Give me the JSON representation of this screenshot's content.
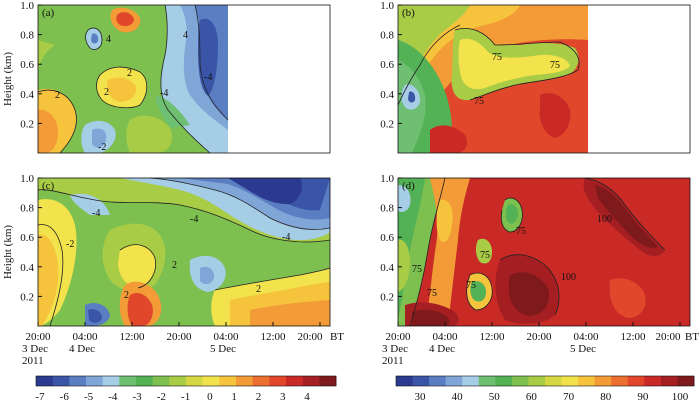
{
  "chart_data": [
    {
      "type": "heatmap",
      "panel_label": "(a)",
      "ylabel": "Height (km)",
      "yticks": [
        "0.2",
        "0.4",
        "0.6",
        "0.8",
        "1.0"
      ],
      "ylim": [
        0.02,
        1.0
      ],
      "data_extent": "20:00 3 Dec to ~07:00 5 Dec",
      "contour_labels": [
        "4",
        "4",
        "2",
        "2",
        "-4",
        "-4",
        "2",
        "-2"
      ]
    },
    {
      "type": "heatmap",
      "panel_label": "(b)",
      "yticks": [
        "0.2",
        "0.4",
        "0.6",
        "0.8",
        "1.0"
      ],
      "ylim": [
        0.02,
        1.0
      ],
      "data_extent": "20:00 3 Dec to ~07:00 5 Dec",
      "contour_labels": [
        "75",
        "75",
        "75"
      ]
    },
    {
      "type": "heatmap",
      "panel_label": "(c)",
      "ylabel": "Height (km)",
      "yticks": [
        "0.2",
        "0.4",
        "0.6",
        "0.8",
        "1.0"
      ],
      "ylim": [
        0.02,
        1.0
      ],
      "x_tick_labels": [
        "20:00",
        "04:00",
        "12:00",
        "20:00",
        "04:00",
        "12:00",
        "20:00",
        "BT"
      ],
      "date_labels": [
        "3 Dec",
        "4 Dec",
        "5 Dec"
      ],
      "year_label": "2011",
      "contour_labels": [
        "-4",
        "-4",
        "-2",
        "-4",
        "2",
        "2",
        "2"
      ]
    },
    {
      "type": "heatmap",
      "panel_label": "(d)",
      "yticks": [
        "0.2",
        "0.4",
        "0.6",
        "0.8",
        "1.0"
      ],
      "ylim": [
        0.02,
        1.0
      ],
      "x_tick_labels": [
        "20:00",
        "04:00",
        "12:00",
        "20:00",
        "04:00",
        "12:00",
        "20:00",
        "BT"
      ],
      "date_labels": [
        "3 Dec",
        "4 Dec",
        "5 Dec"
      ],
      "year_label": "2011",
      "contour_labels": [
        "75",
        "75",
        "75",
        "75",
        "75",
        "100",
        "100"
      ]
    }
  ],
  "colorbars": [
    {
      "name": "left",
      "tick_labels": [
        "-7",
        "-6",
        "-5",
        "-4",
        "-3",
        "-2",
        "-1",
        "0",
        "1",
        "2",
        "3",
        "4"
      ],
      "colors": [
        "#2b3a8f",
        "#3a55a8",
        "#5b7ec2",
        "#7fa6d6",
        "#a6cde6",
        "#6fbf73",
        "#52b255",
        "#7dc04f",
        "#a9cc47",
        "#d6d843",
        "#f2e24b",
        "#f6c33d",
        "#f29b37",
        "#ec6f30",
        "#e0472b",
        "#c92a26",
        "#a51f22",
        "#7e1a1c"
      ]
    },
    {
      "name": "right",
      "tick_labels": [
        "30",
        "40",
        "50",
        "60",
        "70",
        "80",
        "90",
        "100"
      ],
      "colors": [
        "#2b3a8f",
        "#3a55a8",
        "#5b7ec2",
        "#7fa6d6",
        "#a6cde6",
        "#6fbf73",
        "#52b255",
        "#7dc04f",
        "#a9cc47",
        "#d6d843",
        "#f2e24b",
        "#f6c33d",
        "#f29b37",
        "#ec6f30",
        "#e0472b",
        "#c92a26",
        "#a51f22",
        "#7e1a1c"
      ]
    }
  ]
}
